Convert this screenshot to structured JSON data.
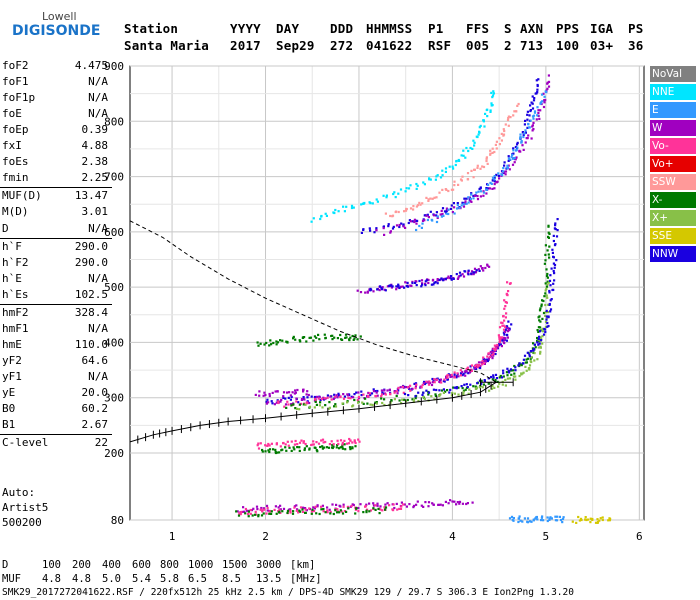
{
  "logo": {
    "line1": "Lowell",
    "line2": "DIGISONDE"
  },
  "header": {
    "labels": [
      "Station",
      "YYYY",
      "DAY",
      "DDD",
      "HHMMSS",
      "P1",
      "FFS",
      "S",
      "AXN",
      "PPS",
      "IGA",
      "PS"
    ],
    "values": [
      "Santa Maria",
      "2017",
      "Sep29",
      "272",
      "041622",
      "RSF",
      "005",
      "2",
      "713",
      "100",
      "03+",
      "36"
    ]
  },
  "params": [
    {
      "label": "foF2",
      "value": "4.475"
    },
    {
      "label": "foF1",
      "value": "N/A"
    },
    {
      "label": "foF1p",
      "value": "N/A"
    },
    {
      "label": "foE",
      "value": "N/A"
    },
    {
      "label": "foEp",
      "value": "0.39"
    },
    {
      "label": "fxI",
      "value": "4.88"
    },
    {
      "label": "foEs",
      "value": "2.38"
    },
    {
      "label": "fmin",
      "value": "2.25"
    },
    {
      "label": "MUF(D)",
      "value": "13.47"
    },
    {
      "label": "M(D)",
      "value": "3.01"
    },
    {
      "label": "D",
      "value": "N/A"
    },
    {
      "label": "h`F",
      "value": "290.0"
    },
    {
      "label": "h`F2",
      "value": "290.0"
    },
    {
      "label": "h`E",
      "value": "N/A"
    },
    {
      "label": "h`Es",
      "value": "102.5"
    },
    {
      "label": "hmF2",
      "value": "328.4"
    },
    {
      "label": "hmF1",
      "value": "N/A"
    },
    {
      "label": "hmE",
      "value": "110.0"
    },
    {
      "label": "yF2",
      "value": "64.6"
    },
    {
      "label": "yF1",
      "value": "N/A"
    },
    {
      "label": "yE",
      "value": "20.0"
    },
    {
      "label": "B0",
      "value": "60.2"
    },
    {
      "label": "B1",
      "value": "2.67"
    },
    {
      "label": "C-level",
      "value": "22"
    }
  ],
  "autoscaling": {
    "line1": "Auto:",
    "line2": "Artist5",
    "line3": "500200"
  },
  "legend": [
    {
      "label": "NoVal",
      "color": "#808080"
    },
    {
      "label": "NNE",
      "color": "#00e5ff"
    },
    {
      "label": "E",
      "color": "#3399ff"
    },
    {
      "label": "W",
      "color": "#a000c0"
    },
    {
      "label": "Vo-",
      "color": "#ff3399"
    },
    {
      "label": "Vo+",
      "color": "#e60000"
    },
    {
      "label": "SSW",
      "color": "#ff9999"
    },
    {
      "label": "X-",
      "color": "#007a00"
    },
    {
      "label": "X+",
      "color": "#88c048"
    },
    {
      "label": "SSE",
      "color": "#d4c800"
    },
    {
      "label": "NNW",
      "color": "#1a00e0"
    }
  ],
  "footer": {
    "d_label": "D",
    "d_values": [
      "100",
      "200",
      "400",
      "600",
      "800",
      "1000",
      "1500",
      "3000"
    ],
    "d_unit": "[km]",
    "muf_label": "MUF",
    "muf_values": [
      "4.8",
      "4.8",
      "5.0",
      "5.4",
      "5.8",
      "6.5",
      "8.5",
      "13.5"
    ],
    "muf_unit": "[MHz]",
    "info": "SMK29_2017272041622.RSF / 220fx512h 25 kHz 2.5 km / DPS-4D SMK29 129 / 29.7 S 306.3 E Ion2Png 1.3.20"
  },
  "chart_data": {
    "type": "scatter",
    "x_ticks": [
      "1",
      "2",
      "3",
      "4",
      "5",
      "6"
    ],
    "y_ticks": [
      "80",
      "200",
      "300",
      "400",
      "500",
      "600",
      "700",
      "800",
      "900"
    ],
    "xlim": [
      0.55,
      6.05
    ],
    "ylim": [
      80,
      900
    ],
    "grid": true,
    "legend_position": "right",
    "profile_curve": [
      [
        0.55,
        220
      ],
      [
        0.8,
        233
      ],
      [
        1.0,
        240
      ],
      [
        1.3,
        250
      ],
      [
        1.6,
        257
      ],
      [
        2.0,
        263
      ],
      [
        2.5,
        272
      ],
      [
        3.0,
        280
      ],
      [
        3.5,
        290
      ],
      [
        4.0,
        300
      ],
      [
        4.3,
        310
      ],
      [
        4.47,
        328
      ],
      [
        4.3,
        345
      ],
      [
        4.0,
        358
      ],
      [
        3.6,
        375
      ],
      [
        3.2,
        395
      ],
      [
        2.8,
        420
      ],
      [
        2.4,
        450
      ],
      [
        2.0,
        480
      ],
      [
        1.6,
        515
      ],
      [
        1.2,
        555
      ],
      [
        0.9,
        590
      ],
      [
        0.55,
        620
      ]
    ],
    "traces": [
      {
        "name": "F2 O-trace",
        "color": "#1a00e0",
        "points": [
          [
            2.0,
            295
          ],
          [
            2.4,
            300
          ],
          [
            2.8,
            305
          ],
          [
            3.2,
            313
          ],
          [
            3.6,
            322
          ],
          [
            3.9,
            335
          ],
          [
            4.1,
            348
          ],
          [
            4.3,
            362
          ],
          [
            4.45,
            385
          ],
          [
            4.55,
            410
          ],
          [
            4.6,
            440
          ]
        ]
      },
      {
        "name": "F2 O-trace",
        "color": "#a000c0",
        "points": [
          [
            2.0,
            292
          ],
          [
            2.5,
            298
          ],
          [
            3.0,
            306
          ],
          [
            3.4,
            315
          ],
          [
            3.8,
            330
          ],
          [
            4.1,
            345
          ],
          [
            4.35,
            368
          ],
          [
            4.5,
            395
          ],
          [
            4.6,
            430
          ]
        ]
      },
      {
        "name": "F2 O-trace",
        "color": "#ff3399",
        "points": [
          [
            2.1,
            290
          ],
          [
            2.6,
            297
          ],
          [
            3.1,
            305
          ],
          [
            3.5,
            318
          ],
          [
            3.9,
            335
          ],
          [
            4.2,
            355
          ],
          [
            4.4,
            380
          ],
          [
            4.5,
            410
          ],
          [
            4.55,
            450
          ],
          [
            4.6,
            520
          ]
        ]
      },
      {
        "name": "F2 X-trace",
        "color": "#007a00",
        "points": [
          [
            2.2,
            286
          ],
          [
            2.8,
            292
          ],
          [
            3.4,
            300
          ],
          [
            3.9,
            312
          ],
          [
            4.3,
            326
          ],
          [
            4.6,
            345
          ],
          [
            4.8,
            372
          ],
          [
            4.9,
            410
          ],
          [
            4.95,
            460
          ],
          [
            5.0,
            540
          ],
          [
            5.02,
            620
          ]
        ]
      },
      {
        "name": "F2 X-trace",
        "color": "#88c048",
        "points": [
          [
            2.3,
            283
          ],
          [
            3.0,
            290
          ],
          [
            3.6,
            298
          ],
          [
            4.1,
            310
          ],
          [
            4.5,
            325
          ],
          [
            4.75,
            345
          ],
          [
            4.9,
            380
          ],
          [
            4.98,
            430
          ],
          [
            5.02,
            520
          ]
        ]
      },
      {
        "name": "F2 X-trace",
        "color": "#1a00e0",
        "points": [
          [
            3.5,
            305
          ],
          [
            4.0,
            318
          ],
          [
            4.4,
            335
          ],
          [
            4.7,
            360
          ],
          [
            4.9,
            395
          ],
          [
            5.0,
            440
          ],
          [
            5.05,
            500
          ],
          [
            5.08,
            560
          ],
          [
            5.1,
            630
          ]
        ]
      },
      {
        "name": "F2 multihop",
        "color": "#1a00e0",
        "points": [
          [
            3.0,
            600
          ],
          [
            3.4,
            615
          ],
          [
            3.8,
            635
          ],
          [
            4.1,
            655
          ],
          [
            4.4,
            690
          ],
          [
            4.6,
            730
          ],
          [
            4.75,
            780
          ],
          [
            4.85,
            830
          ],
          [
            4.9,
            880
          ]
        ]
      },
      {
        "name": "F2 multihop",
        "color": "#00e5ff",
        "points": [
          [
            2.5,
            625
          ],
          [
            2.9,
            645
          ],
          [
            3.3,
            665
          ],
          [
            3.7,
            690
          ],
          [
            4.0,
            720
          ],
          [
            4.2,
            760
          ],
          [
            4.35,
            810
          ],
          [
            4.45,
            860
          ]
        ]
      },
      {
        "name": "F2 multihop",
        "color": "#a000c0",
        "points": [
          [
            3.2,
            600
          ],
          [
            3.7,
            625
          ],
          [
            4.1,
            650
          ],
          [
            4.4,
            680
          ],
          [
            4.6,
            720
          ],
          [
            4.8,
            770
          ],
          [
            4.95,
            830
          ],
          [
            5.05,
            885
          ]
        ]
      },
      {
        "name": "F2 multihop",
        "color": "#3399ff",
        "points": [
          [
            3.6,
            610
          ],
          [
            4.0,
            640
          ],
          [
            4.3,
            675
          ],
          [
            4.55,
            715
          ],
          [
            4.7,
            760
          ],
          [
            4.85,
            810
          ],
          [
            5.0,
            860
          ]
        ]
      },
      {
        "name": "F2 multihop",
        "color": "#ff9999",
        "points": [
          [
            3.3,
            630
          ],
          [
            3.6,
            650
          ],
          [
            3.9,
            675
          ],
          [
            4.2,
            705
          ],
          [
            4.4,
            740
          ],
          [
            4.55,
            785
          ],
          [
            4.7,
            835
          ]
        ]
      },
      {
        "name": "2F",
        "color": "#a000c0",
        "points": [
          [
            3.0,
            495
          ],
          [
            3.3,
            502
          ],
          [
            3.6,
            508
          ],
          [
            3.9,
            515
          ],
          [
            4.2,
            528
          ],
          [
            4.4,
            545
          ]
        ]
      },
      {
        "name": "2F",
        "color": "#1a00e0",
        "points": [
          [
            3.1,
            498
          ],
          [
            3.4,
            504
          ],
          [
            3.7,
            510
          ],
          [
            4.0,
            520
          ],
          [
            4.3,
            535
          ]
        ]
      },
      {
        "name": "2Es",
        "color": "#007a00",
        "points": [
          [
            1.95,
            205
          ],
          [
            2.2,
            208
          ],
          [
            2.5,
            210
          ],
          [
            2.75,
            212
          ],
          [
            2.95,
            214
          ]
        ]
      },
      {
        "name": "2Es",
        "color": "#ff3399",
        "points": [
          [
            1.9,
            215
          ],
          [
            2.2,
            218
          ],
          [
            2.5,
            220
          ],
          [
            2.8,
            222
          ],
          [
            3.0,
            224
          ]
        ]
      },
      {
        "name": "Es",
        "color": "#a000c0",
        "points": [
          [
            1.7,
            100
          ],
          [
            2.0,
            102
          ],
          [
            2.4,
            104
          ],
          [
            2.8,
            106
          ],
          [
            3.2,
            108
          ],
          [
            3.6,
            110
          ],
          [
            3.9,
            112
          ],
          [
            4.2,
            114
          ]
        ]
      },
      {
        "name": "Es",
        "color": "#ff3399",
        "points": [
          [
            1.7,
            96
          ],
          [
            2.0,
            98
          ],
          [
            2.4,
            100
          ],
          [
            2.8,
            102
          ],
          [
            3.2,
            104
          ],
          [
            3.5,
            106
          ]
        ]
      },
      {
        "name": "Es",
        "color": "#007a00",
        "points": [
          [
            1.7,
            92
          ],
          [
            2.1,
            94
          ],
          [
            2.5,
            96
          ],
          [
            2.9,
            98
          ],
          [
            3.3,
            100
          ]
        ]
      },
      {
        "name": "Es",
        "color": "#3399ff",
        "points": [
          [
            4.6,
            83
          ],
          [
            4.8,
            83
          ],
          [
            5.0,
            83
          ],
          [
            5.2,
            83
          ]
        ]
      },
      {
        "name": "Es",
        "color": "#d4c800",
        "points": [
          [
            5.3,
            82
          ],
          [
            5.5,
            82
          ],
          [
            5.7,
            82
          ]
        ]
      },
      {
        "name": "extra",
        "color": "#007a00",
        "points": [
          [
            1.9,
            400
          ],
          [
            2.2,
            405
          ],
          [
            2.5,
            410
          ],
          [
            2.8,
            412
          ],
          [
            3.0,
            410
          ]
        ]
      },
      {
        "name": "extra",
        "color": "#a000c0",
        "points": [
          [
            1.9,
            308
          ],
          [
            2.2,
            310
          ],
          [
            2.5,
            312
          ]
        ]
      }
    ]
  }
}
